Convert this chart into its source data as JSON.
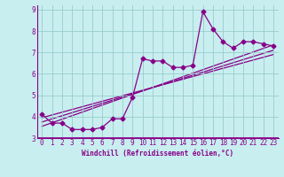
{
  "xlabel": "Windchill (Refroidissement éolien,°C)",
  "xlim": [
    -0.5,
    23.5
  ],
  "ylim": [
    3,
    9.2
  ],
  "xticks": [
    0,
    1,
    2,
    3,
    4,
    5,
    6,
    7,
    8,
    9,
    10,
    11,
    12,
    13,
    14,
    15,
    16,
    17,
    18,
    19,
    20,
    21,
    22,
    23
  ],
  "yticks": [
    3,
    4,
    5,
    6,
    7,
    8,
    9
  ],
  "bg_color": "#c8eef0",
  "line_color": "#880088",
  "grid_color": "#99cccc",
  "series": [
    [
      0,
      4.1
    ],
    [
      1,
      3.7
    ],
    [
      2,
      3.7
    ],
    [
      3,
      3.4
    ],
    [
      4,
      3.4
    ],
    [
      5,
      3.4
    ],
    [
      6,
      3.5
    ],
    [
      7,
      3.9
    ],
    [
      8,
      3.9
    ],
    [
      9,
      4.9
    ],
    [
      10,
      6.7
    ],
    [
      11,
      6.6
    ],
    [
      12,
      6.6
    ],
    [
      13,
      6.3
    ],
    [
      14,
      6.3
    ],
    [
      15,
      6.4
    ],
    [
      16,
      8.9
    ],
    [
      17,
      8.1
    ],
    [
      18,
      7.5
    ],
    [
      19,
      7.2
    ],
    [
      20,
      7.5
    ],
    [
      21,
      7.5
    ],
    [
      22,
      7.4
    ],
    [
      23,
      7.3
    ]
  ],
  "regression_lines": [
    {
      "x0": 0,
      "y0": 3.55,
      "x1": 23,
      "y1": 7.35
    },
    {
      "x0": 0,
      "y0": 3.75,
      "x1": 23,
      "y1": 7.1
    },
    {
      "x0": 0,
      "y0": 3.95,
      "x1": 23,
      "y1": 6.9
    }
  ],
  "xlabel_fontsize": 5.5,
  "tick_fontsize": 5.5,
  "marker_size": 2.5,
  "line_width": 0.9
}
